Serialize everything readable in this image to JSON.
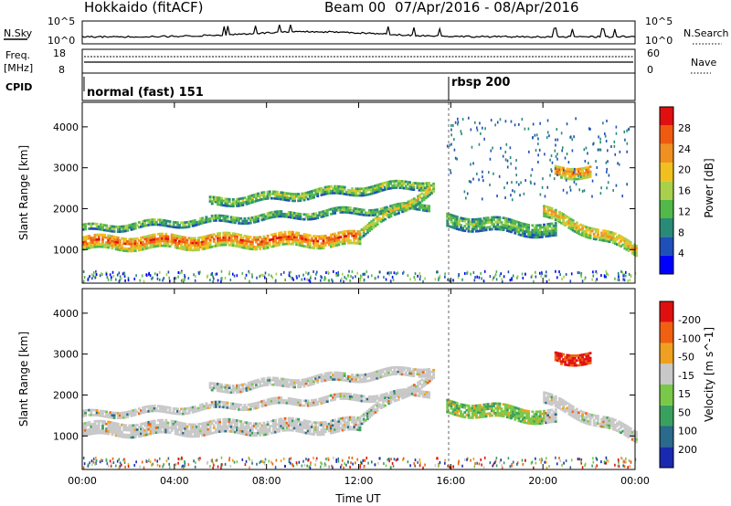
{
  "header": {
    "station": "Hokkaido (fitACF)",
    "beam": "Beam 00",
    "date_range": "07/Apr/2016 - 08/Apr/2016"
  },
  "strip_nsky": {
    "left_label": "N.Sky",
    "left_ticks": [
      "10^5",
      "10^0"
    ],
    "right_label": "N.Search",
    "right_ticks": [
      "10^5",
      "10^0"
    ],
    "line_color": "#000000"
  },
  "strip_freq": {
    "left_label_1": "Freq.",
    "left_label_2": "[MHz]",
    "left_ticks": [
      "18",
      "8"
    ],
    "right_label": "Nave",
    "right_ticks": [
      "60",
      "0"
    ]
  },
  "strip_cpid": {
    "label": "CPID",
    "segments": [
      {
        "text": "normal (fast) 151",
        "start_hour": 0
      },
      {
        "text": "rbsp 200",
        "start_hour": 16
      }
    ]
  },
  "chart_data": [
    {
      "type": "heatmap",
      "name": "power",
      "ylabel": "Slant Range [km]",
      "xlabel": "",
      "xlim_hours": [
        0,
        24
      ],
      "ylim": [
        180,
        4600
      ],
      "yticks": [
        1000,
        2000,
        3000,
        4000
      ],
      "xticks": [
        0,
        4,
        8,
        12,
        16,
        20,
        24
      ],
      "colorbar": {
        "label": "Power [dB]",
        "ticks": [
          "4",
          "8",
          "12",
          "16",
          "20",
          "24",
          "28"
        ],
        "colors": [
          "#0000ff",
          "#1f4fb8",
          "#2a8a78",
          "#52b84a",
          "#a8d04a",
          "#f0c020",
          "#f09020",
          "#f05a10",
          "#e01010"
        ]
      },
      "echo_bands": [
        {
          "t0": 0.0,
          "t1": 12.0,
          "r_start": 1150,
          "r_end": 1250,
          "width": 350,
          "level": 0.85
        },
        {
          "t0": 0.0,
          "t1": 15.0,
          "r_start": 1500,
          "r_end": 2050,
          "width": 180,
          "level": 0.45
        },
        {
          "t0": 5.5,
          "t1": 15.0,
          "r_start": 2150,
          "r_end": 2600,
          "width": 220,
          "level": 0.5
        },
        {
          "t0": 12.0,
          "t1": 15.2,
          "r_start": 1400,
          "r_end": 2500,
          "width": 250,
          "level": 0.6
        },
        {
          "t0": 15.8,
          "t1": 20.5,
          "r_start": 1700,
          "r_end": 1450,
          "width": 350,
          "level": 0.45
        },
        {
          "t0": 20.0,
          "t1": 24.0,
          "r_start": 1900,
          "r_end": 1000,
          "width": 300,
          "level": 0.7
        },
        {
          "t0": 20.5,
          "t1": 22.0,
          "r_start": 2900,
          "r_end": 2900,
          "width": 300,
          "level": 0.8
        }
      ]
    },
    {
      "type": "heatmap",
      "name": "velocity",
      "ylabel": "Slant Range [km]",
      "xlabel": "Time UT",
      "xlim_hours": [
        0,
        24
      ],
      "ylim": [
        180,
        4600
      ],
      "yticks": [
        1000,
        2000,
        3000,
        4000
      ],
      "xticks": [
        0,
        4,
        8,
        12,
        16,
        20,
        24
      ],
      "xtick_labels": [
        "00:00",
        "04:00",
        "08:00",
        "12:00",
        "16:00",
        "20:00",
        "00:00"
      ],
      "colorbar": {
        "label": "Velocity [m s^-1]",
        "ticks": [
          "200",
          "100",
          "50",
          "15",
          "-15",
          "-50",
          "-100",
          "-200"
        ],
        "colors": [
          "#1a2ab0",
          "#2a6a8a",
          "#3aa060",
          "#7ac848",
          "#c8c8c8",
          "#f0a020",
          "#f06010",
          "#e01010"
        ]
      }
    }
  ]
}
